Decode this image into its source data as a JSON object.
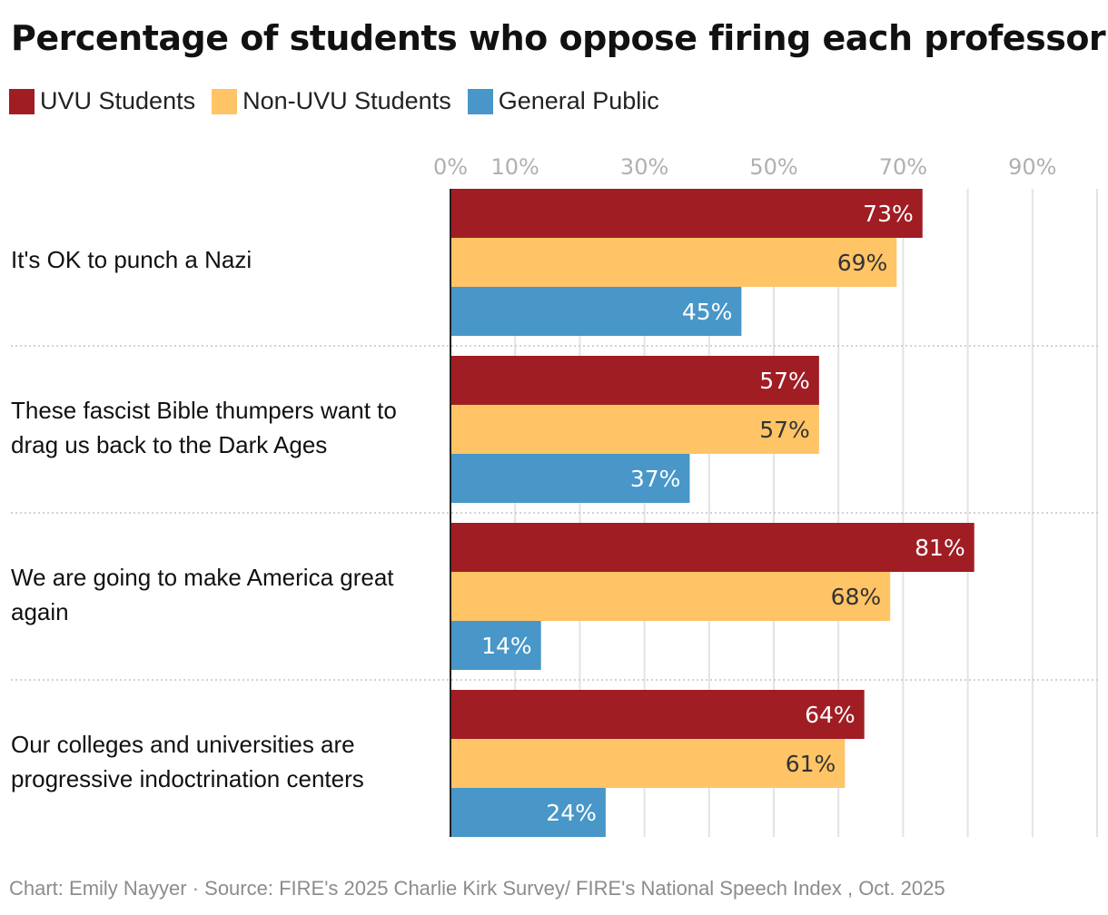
{
  "title": "Percentage of students who oppose firing each professor",
  "legend": [
    {
      "label": "UVU Students",
      "color": "#a01d24"
    },
    {
      "label": "Non-UVU Students",
      "color": "#ffc466"
    },
    {
      "label": "General Public",
      "color": "#4897c8"
    }
  ],
  "chart_data": {
    "type": "bar",
    "orientation": "horizontal",
    "title": "Percentage of students who oppose firing each professor",
    "categories": [
      "It's OK to punch a Nazi",
      "These fascist Bible thumpers want to drag us back to the Dark Ages",
      "We are going to make America great again",
      "Our colleges and universities are progressive indoctrination centers"
    ],
    "series": [
      {
        "name": "UVU Students",
        "color": "#a01d24",
        "values": [
          73,
          57,
          81,
          64
        ]
      },
      {
        "name": "Non-UVU Students",
        "color": "#ffc466",
        "values": [
          69,
          57,
          68,
          61
        ]
      },
      {
        "name": "General Public",
        "color": "#4897c8",
        "values": [
          45,
          37,
          14,
          24
        ]
      }
    ],
    "xlim": [
      0,
      100
    ],
    "xticks": [
      0,
      10,
      30,
      50,
      70,
      90
    ],
    "xtick_labels": [
      "0%",
      "10%",
      "30%",
      "50%",
      "70%",
      "90%"
    ],
    "value_suffix": "%",
    "grid": true,
    "legend_position": "top-left"
  },
  "footer": {
    "text": "Chart: Emily Nayyer  · Source: FIRE's 2025 Charlie Kirk Survey/ FIRE's National Speech Index , Oct. 2025"
  }
}
